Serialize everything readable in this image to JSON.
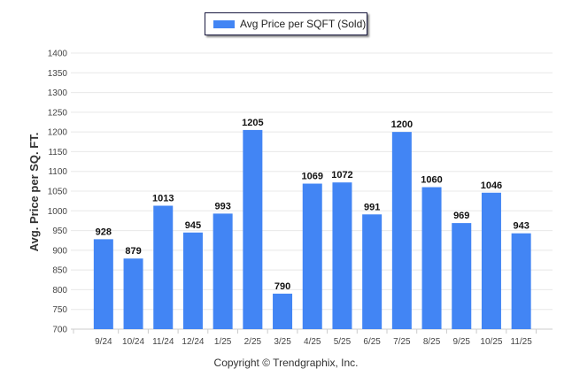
{
  "chart_data": {
    "type": "bar",
    "title": "",
    "legend": [
      "Avg Price per SQFT (Sold)"
    ],
    "legend_position": "top-center",
    "xlabel": "",
    "ylabel": "Avg. Price per SQ. FT.",
    "ylim": [
      700,
      1400
    ],
    "yticks": [
      700,
      750,
      800,
      850,
      900,
      950,
      1000,
      1050,
      1100,
      1150,
      1200,
      1250,
      1300,
      1350,
      1400
    ],
    "grid": true,
    "categories": [
      "9/24",
      "10/24",
      "11/24",
      "12/24",
      "1/25",
      "2/25",
      "3/25",
      "4/25",
      "5/25",
      "6/25",
      "7/25",
      "8/25",
      "9/25",
      "10/25",
      "11/25"
    ],
    "series": [
      {
        "name": "Avg Price per SQFT (Sold)",
        "color": "#4285f4",
        "values": [
          928,
          879,
          1013,
          945,
          993,
          1205,
          790,
          1069,
          1072,
          991,
          1200,
          1060,
          969,
          1046,
          943
        ]
      }
    ]
  },
  "footer": "Copyright © Trendgraphix, Inc."
}
